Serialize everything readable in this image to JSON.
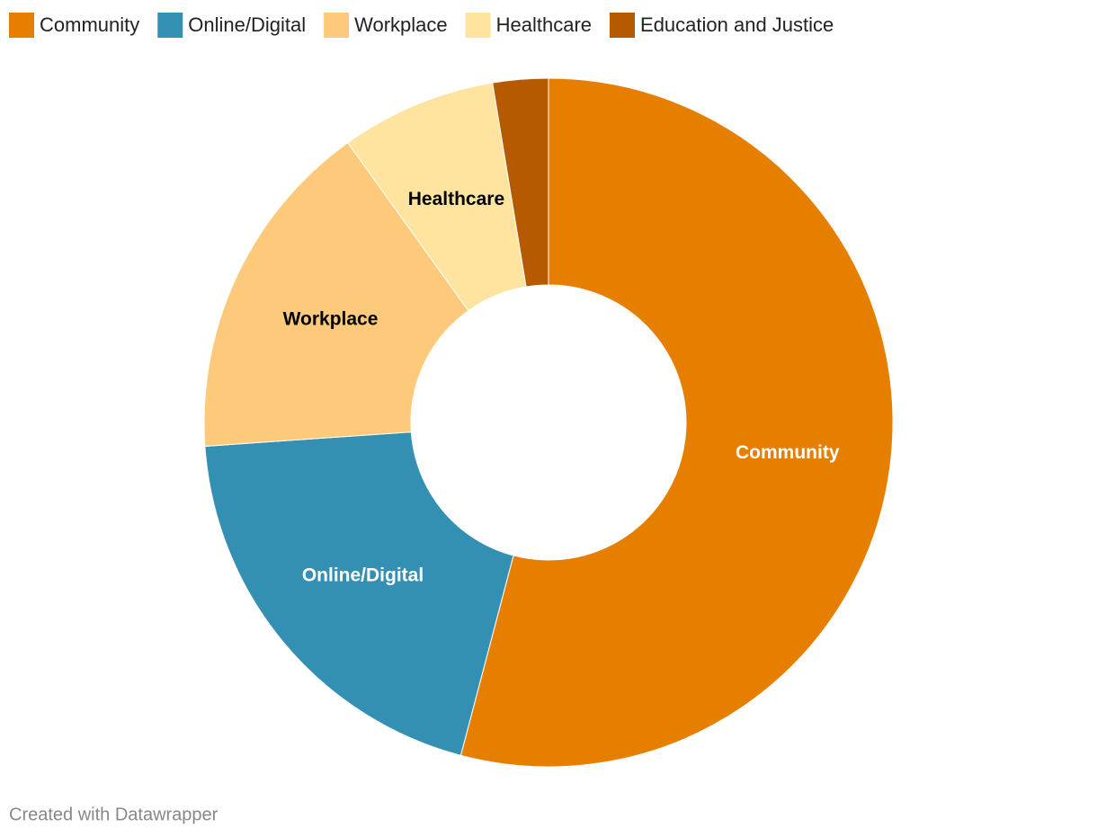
{
  "chart_data": {
    "type": "donut",
    "categories": [
      "Community",
      "Online/Digital",
      "Workplace",
      "Healthcare",
      "Education and Justice"
    ],
    "values": [
      54.1,
      19.8,
      16.2,
      7.3,
      2.6
    ],
    "colors": [
      "#e67e00",
      "#3490b3",
      "#fdca7b",
      "#fee49e",
      "#b55a00"
    ],
    "legend": "top-left"
  },
  "footer": "Created with Datawrapper"
}
